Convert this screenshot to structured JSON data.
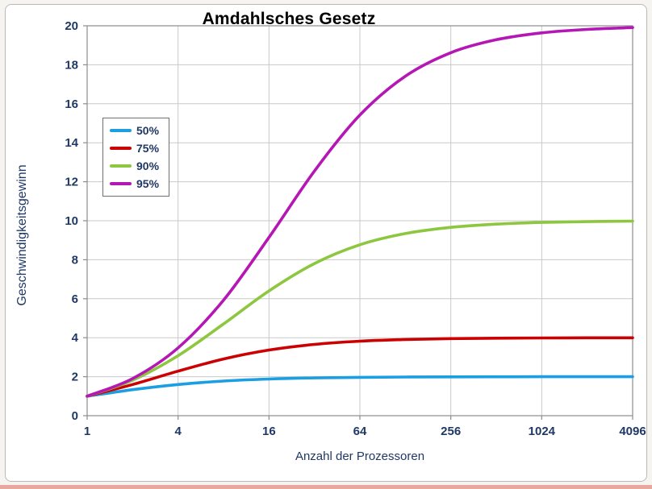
{
  "colors": {
    "page_background": "#f6f4f1",
    "frame_background": "#ffffff",
    "frame_border": "#beb8b1",
    "plot_border": "#8c8c8c",
    "gridline": "#c9c9c9",
    "tick_text": "#1f3864",
    "axis_label_text": "#1f3864",
    "title_text": "#000000",
    "legend_border": "#6f6f6f",
    "legend_text": "#1f3864",
    "bottom_strip": "#e9a79d"
  },
  "chart_data": {
    "type": "line",
    "title": "Amdahlsches Gesetz",
    "xlabel": "Anzahl der Prozessoren",
    "ylabel": "Geschwindigkeitsgewinn",
    "x_scale": "log2",
    "xlim": [
      1,
      4096
    ],
    "ylim": [
      0,
      20
    ],
    "grid": true,
    "legend_position": "upper-left",
    "x": [
      1,
      2,
      4,
      8,
      16,
      32,
      64,
      128,
      256,
      512,
      1024,
      2048,
      4096
    ],
    "x_tick_values": [
      1,
      4,
      16,
      64,
      256,
      1024,
      4096
    ],
    "x_tick_labels": [
      "1",
      "4",
      "16",
      "64",
      "256",
      "1024",
      "4096"
    ],
    "y_ticks": [
      0,
      2,
      4,
      6,
      8,
      10,
      12,
      14,
      16,
      18,
      20
    ],
    "series": [
      {
        "name": "50%",
        "color": "#1c9ee3",
        "values": [
          1,
          1.333,
          1.6,
          1.778,
          1.882,
          1.939,
          1.969,
          1.984,
          1.992,
          1.996,
          1.998,
          1.999,
          2.0
        ]
      },
      {
        "name": "75%",
        "color": "#cc0000",
        "values": [
          1,
          1.6,
          2.286,
          2.909,
          3.368,
          3.657,
          3.821,
          3.908,
          3.954,
          3.977,
          3.988,
          3.994,
          3.997
        ]
      },
      {
        "name": "90%",
        "color": "#8dc63f",
        "values": [
          1,
          1.818,
          3.077,
          4.706,
          6.4,
          7.805,
          8.767,
          9.343,
          9.66,
          9.827,
          9.913,
          9.956,
          9.978
        ]
      },
      {
        "name": "95%",
        "color": "#b517b5",
        "values": [
          1,
          1.905,
          3.478,
          5.926,
          9.143,
          12.549,
          15.422,
          17.415,
          18.618,
          19.284,
          19.636,
          19.816,
          19.908
        ]
      }
    ]
  }
}
